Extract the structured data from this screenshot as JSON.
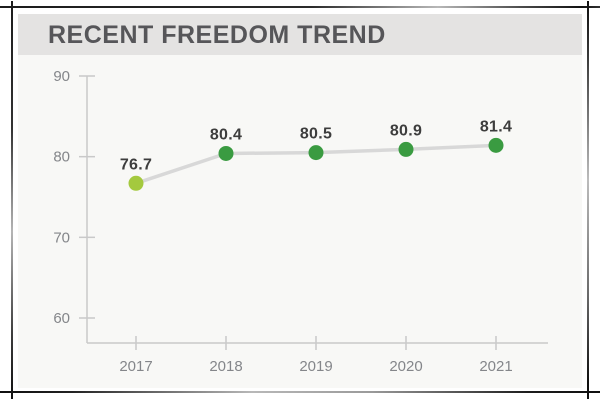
{
  "header": {
    "title": "RECENT FREEDOM TREND"
  },
  "colors": {
    "header_bg": "#e4e3e2",
    "chart_bg": "#f8f8f6",
    "title_text": "#565659",
    "axis": "#c9c9c9",
    "tick_label": "#84868a",
    "data_label": "#3d3d3d",
    "trend_line": "#d8d8d8",
    "point_first": "#a4c93e",
    "point_rest": "#3a9b41"
  },
  "chart_data": {
    "type": "line",
    "title": "RECENT FREEDOM TREND",
    "categories": [
      "2017",
      "2018",
      "2019",
      "2020",
      "2021"
    ],
    "values": [
      76.7,
      80.4,
      80.5,
      80.9,
      81.4
    ],
    "data_labels": [
      "76.7",
      "80.4",
      "80.5",
      "80.9",
      "81.4"
    ],
    "point_colors": [
      "#a4c93e",
      "#3a9b41",
      "#3a9b41",
      "#3a9b41",
      "#3a9b41"
    ],
    "xlabel": "",
    "ylabel": "",
    "ylim": [
      60,
      90
    ],
    "yticks": [
      60,
      70,
      80,
      90
    ],
    "grid": false,
    "legend": false,
    "data_labels_position": "above-points"
  }
}
